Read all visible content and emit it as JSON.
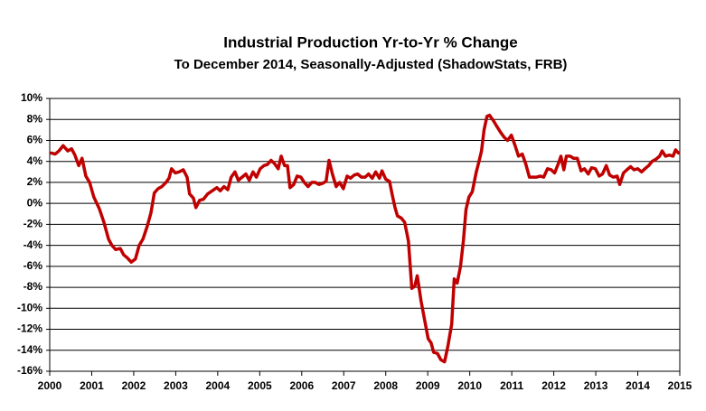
{
  "chart_data": {
    "type": "line",
    "title": "Industrial Production Yr-to-Yr %  Change",
    "subtitle": "To December 2014, Seasonally-Adjusted (ShadowStats, FRB)",
    "x": [
      2000.04,
      2000.13,
      2000.22,
      2000.32,
      2000.43,
      2000.52,
      2000.6,
      2000.69,
      2000.77,
      2000.86,
      2000.95,
      2001.05,
      2001.18,
      2001.29,
      2001.4,
      2001.48,
      2001.57,
      2001.68,
      2001.76,
      2001.85,
      2001.94,
      2002.04,
      2002.13,
      2002.22,
      2002.32,
      2002.41,
      2002.49,
      2002.58,
      2002.67,
      2002.77,
      2002.84,
      2002.9,
      2002.99,
      2003.08,
      2003.18,
      2003.27,
      2003.33,
      2003.42,
      2003.48,
      2003.57,
      2003.66,
      2003.76,
      2003.87,
      2003.98,
      2004.06,
      2004.15,
      2004.24,
      2004.32,
      2004.41,
      2004.49,
      2004.58,
      2004.67,
      2004.75,
      2004.84,
      2004.92,
      2005.01,
      2005.1,
      2005.18,
      2005.27,
      2005.35,
      2005.44,
      2005.51,
      2005.59,
      2005.66,
      2005.72,
      2005.81,
      2005.89,
      2005.98,
      2006.06,
      2006.15,
      2006.24,
      2006.32,
      2006.41,
      2006.49,
      2006.58,
      2006.65,
      2006.73,
      2006.82,
      2006.9,
      2006.99,
      2007.08,
      2007.16,
      2007.25,
      2007.33,
      2007.42,
      2007.51,
      2007.59,
      2007.68,
      2007.76,
      2007.85,
      2007.91,
      2008.0,
      2008.09,
      2008.15,
      2008.22,
      2008.28,
      2008.37,
      2008.45,
      2008.54,
      2008.62,
      2008.69,
      2008.75,
      2008.84,
      2008.92,
      2009.01,
      2009.08,
      2009.14,
      2009.23,
      2009.31,
      2009.4,
      2009.48,
      2009.57,
      2009.63,
      2009.7,
      2009.78,
      2009.85,
      2009.91,
      2009.98,
      2010.06,
      2010.15,
      2010.22,
      2010.28,
      2010.34,
      2010.41,
      2010.47,
      2010.56,
      2010.65,
      2010.73,
      2010.82,
      2010.9,
      2010.99,
      2011.08,
      2011.16,
      2011.25,
      2011.33,
      2011.42,
      2011.51,
      2011.59,
      2011.68,
      2011.76,
      2011.85,
      2011.94,
      2012.02,
      2012.11,
      2012.17,
      2012.24,
      2012.3,
      2012.39,
      2012.47,
      2012.56,
      2012.65,
      2012.73,
      2012.82,
      2012.9,
      2012.99,
      2013.08,
      2013.16,
      2013.25,
      2013.33,
      2013.42,
      2013.51,
      2013.57,
      2013.66,
      2013.74,
      2013.83,
      2013.91,
      2014.0,
      2014.09,
      2014.17,
      2014.26,
      2014.34,
      2014.43,
      2014.52,
      2014.58,
      2014.66,
      2014.75,
      2014.84,
      2014.9,
      2014.97
    ],
    "values": [
      4.8,
      4.7,
      5.0,
      5.5,
      5.0,
      5.2,
      4.6,
      3.6,
      4.3,
      2.6,
      2.0,
      0.6,
      -0.5,
      -1.8,
      -3.4,
      -4.0,
      -4.4,
      -4.3,
      -4.9,
      -5.2,
      -5.6,
      -5.3,
      -4.0,
      -3.4,
      -2.2,
      -0.9,
      1.0,
      1.4,
      1.6,
      2.0,
      2.4,
      3.3,
      2.9,
      3.0,
      3.2,
      2.5,
      0.9,
      0.5,
      -0.4,
      0.3,
      0.4,
      0.9,
      1.2,
      1.5,
      1.2,
      1.6,
      1.3,
      2.5,
      3.0,
      2.2,
      2.5,
      2.8,
      2.2,
      3.0,
      2.5,
      3.3,
      3.6,
      3.7,
      4.1,
      3.8,
      3.3,
      4.5,
      3.6,
      3.6,
      1.5,
      1.8,
      2.6,
      2.5,
      2.0,
      1.6,
      2.0,
      2.0,
      1.8,
      1.9,
      2.1,
      4.1,
      2.8,
      1.6,
      2.0,
      1.4,
      2.6,
      2.4,
      2.7,
      2.8,
      2.5,
      2.5,
      2.8,
      2.4,
      3.0,
      2.4,
      3.1,
      2.3,
      2.1,
      0.9,
      -0.4,
      -1.2,
      -1.4,
      -1.8,
      -3.6,
      -8.1,
      -7.9,
      -6.9,
      -9.3,
      -11.0,
      -12.9,
      -13.3,
      -14.2,
      -14.3,
      -14.9,
      -15.1,
      -13.6,
      -11.5,
      -7.2,
      -7.6,
      -6.0,
      -3.5,
      -0.6,
      0.6,
      1.1,
      2.9,
      4.0,
      5.0,
      7.0,
      8.3,
      8.4,
      7.9,
      7.3,
      6.8,
      6.3,
      6.0,
      6.5,
      5.5,
      4.5,
      4.7,
      3.8,
      2.5,
      2.5,
      2.5,
      2.6,
      2.5,
      3.3,
      3.2,
      2.9,
      3.8,
      4.5,
      3.2,
      4.5,
      4.5,
      4.3,
      4.3,
      3.1,
      3.3,
      2.8,
      3.4,
      3.3,
      2.6,
      2.8,
      3.6,
      2.7,
      2.5,
      2.6,
      1.8,
      2.9,
      3.2,
      3.5,
      3.2,
      3.3,
      3.0,
      3.3,
      3.6,
      4.0,
      4.2,
      4.5,
      5.0,
      4.5,
      4.6,
      4.5,
      5.1,
      4.8
    ],
    "color": "#c00000",
    "xlim": [
      2000,
      2015
    ],
    "xticks": [
      2000,
      2001,
      2002,
      2003,
      2004,
      2005,
      2006,
      2007,
      2008,
      2009,
      2010,
      2011,
      2012,
      2013,
      2014,
      2015
    ],
    "ylim": [
      -16,
      10
    ],
    "yticks": [
      {
        "value": -16,
        "label": "-16%"
      },
      {
        "value": -14,
        "label": "-14%"
      },
      {
        "value": -12,
        "label": "-12%"
      },
      {
        "value": -10,
        "label": "-10%"
      },
      {
        "value": -8,
        "label": "-8%"
      },
      {
        "value": -6,
        "label": "-6%"
      },
      {
        "value": -4,
        "label": "-4%"
      },
      {
        "value": -2,
        "label": "-2%"
      },
      {
        "value": 0,
        "label": "0%"
      },
      {
        "value": 2,
        "label": "2%"
      },
      {
        "value": 4,
        "label": "4%"
      },
      {
        "value": 6,
        "label": "6%"
      },
      {
        "value": 8,
        "label": "8%"
      },
      {
        "value": 10,
        "label": "10%"
      }
    ],
    "grid": true
  }
}
